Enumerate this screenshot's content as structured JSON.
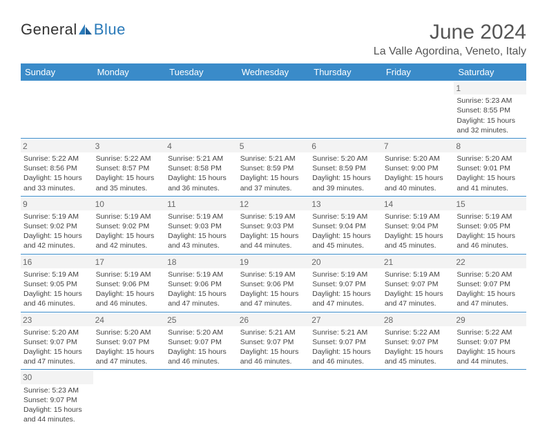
{
  "brand": {
    "name_a": "General",
    "name_b": "Blue"
  },
  "title": "June 2024",
  "location": "La Valle Agordina, Veneto, Italy",
  "colors": {
    "header_bg": "#3a8bc9",
    "header_fg": "#ffffff",
    "daynum_bg": "#f3f3f3",
    "rule": "#3a8bc9",
    "brand_blue": "#2a7ab9",
    "text": "#444444"
  },
  "typography": {
    "title_fontsize": 30,
    "location_fontsize": 16,
    "dayhdr_fontsize": 13,
    "cell_fontsize": 10.5
  },
  "day_headers": [
    "Sunday",
    "Monday",
    "Tuesday",
    "Wednesday",
    "Thursday",
    "Friday",
    "Saturday"
  ],
  "weeks": [
    [
      {
        "n": "",
        "lines": []
      },
      {
        "n": "",
        "lines": []
      },
      {
        "n": "",
        "lines": []
      },
      {
        "n": "",
        "lines": []
      },
      {
        "n": "",
        "lines": []
      },
      {
        "n": "",
        "lines": []
      },
      {
        "n": "1",
        "lines": [
          "Sunrise: 5:23 AM",
          "Sunset: 8:55 PM",
          "Daylight: 15 hours",
          "and 32 minutes."
        ]
      }
    ],
    [
      {
        "n": "2",
        "lines": [
          "Sunrise: 5:22 AM",
          "Sunset: 8:56 PM",
          "Daylight: 15 hours",
          "and 33 minutes."
        ]
      },
      {
        "n": "3",
        "lines": [
          "Sunrise: 5:22 AM",
          "Sunset: 8:57 PM",
          "Daylight: 15 hours",
          "and 35 minutes."
        ]
      },
      {
        "n": "4",
        "lines": [
          "Sunrise: 5:21 AM",
          "Sunset: 8:58 PM",
          "Daylight: 15 hours",
          "and 36 minutes."
        ]
      },
      {
        "n": "5",
        "lines": [
          "Sunrise: 5:21 AM",
          "Sunset: 8:59 PM",
          "Daylight: 15 hours",
          "and 37 minutes."
        ]
      },
      {
        "n": "6",
        "lines": [
          "Sunrise: 5:20 AM",
          "Sunset: 8:59 PM",
          "Daylight: 15 hours",
          "and 39 minutes."
        ]
      },
      {
        "n": "7",
        "lines": [
          "Sunrise: 5:20 AM",
          "Sunset: 9:00 PM",
          "Daylight: 15 hours",
          "and 40 minutes."
        ]
      },
      {
        "n": "8",
        "lines": [
          "Sunrise: 5:20 AM",
          "Sunset: 9:01 PM",
          "Daylight: 15 hours",
          "and 41 minutes."
        ]
      }
    ],
    [
      {
        "n": "9",
        "lines": [
          "Sunrise: 5:19 AM",
          "Sunset: 9:02 PM",
          "Daylight: 15 hours",
          "and 42 minutes."
        ]
      },
      {
        "n": "10",
        "lines": [
          "Sunrise: 5:19 AM",
          "Sunset: 9:02 PM",
          "Daylight: 15 hours",
          "and 42 minutes."
        ]
      },
      {
        "n": "11",
        "lines": [
          "Sunrise: 5:19 AM",
          "Sunset: 9:03 PM",
          "Daylight: 15 hours",
          "and 43 minutes."
        ]
      },
      {
        "n": "12",
        "lines": [
          "Sunrise: 5:19 AM",
          "Sunset: 9:03 PM",
          "Daylight: 15 hours",
          "and 44 minutes."
        ]
      },
      {
        "n": "13",
        "lines": [
          "Sunrise: 5:19 AM",
          "Sunset: 9:04 PM",
          "Daylight: 15 hours",
          "and 45 minutes."
        ]
      },
      {
        "n": "14",
        "lines": [
          "Sunrise: 5:19 AM",
          "Sunset: 9:04 PM",
          "Daylight: 15 hours",
          "and 45 minutes."
        ]
      },
      {
        "n": "15",
        "lines": [
          "Sunrise: 5:19 AM",
          "Sunset: 9:05 PM",
          "Daylight: 15 hours",
          "and 46 minutes."
        ]
      }
    ],
    [
      {
        "n": "16",
        "lines": [
          "Sunrise: 5:19 AM",
          "Sunset: 9:05 PM",
          "Daylight: 15 hours",
          "and 46 minutes."
        ]
      },
      {
        "n": "17",
        "lines": [
          "Sunrise: 5:19 AM",
          "Sunset: 9:06 PM",
          "Daylight: 15 hours",
          "and 46 minutes."
        ]
      },
      {
        "n": "18",
        "lines": [
          "Sunrise: 5:19 AM",
          "Sunset: 9:06 PM",
          "Daylight: 15 hours",
          "and 47 minutes."
        ]
      },
      {
        "n": "19",
        "lines": [
          "Sunrise: 5:19 AM",
          "Sunset: 9:06 PM",
          "Daylight: 15 hours",
          "and 47 minutes."
        ]
      },
      {
        "n": "20",
        "lines": [
          "Sunrise: 5:19 AM",
          "Sunset: 9:07 PM",
          "Daylight: 15 hours",
          "and 47 minutes."
        ]
      },
      {
        "n": "21",
        "lines": [
          "Sunrise: 5:19 AM",
          "Sunset: 9:07 PM",
          "Daylight: 15 hours",
          "and 47 minutes."
        ]
      },
      {
        "n": "22",
        "lines": [
          "Sunrise: 5:20 AM",
          "Sunset: 9:07 PM",
          "Daylight: 15 hours",
          "and 47 minutes."
        ]
      }
    ],
    [
      {
        "n": "23",
        "lines": [
          "Sunrise: 5:20 AM",
          "Sunset: 9:07 PM",
          "Daylight: 15 hours",
          "and 47 minutes."
        ]
      },
      {
        "n": "24",
        "lines": [
          "Sunrise: 5:20 AM",
          "Sunset: 9:07 PM",
          "Daylight: 15 hours",
          "and 47 minutes."
        ]
      },
      {
        "n": "25",
        "lines": [
          "Sunrise: 5:20 AM",
          "Sunset: 9:07 PM",
          "Daylight: 15 hours",
          "and 46 minutes."
        ]
      },
      {
        "n": "26",
        "lines": [
          "Sunrise: 5:21 AM",
          "Sunset: 9:07 PM",
          "Daylight: 15 hours",
          "and 46 minutes."
        ]
      },
      {
        "n": "27",
        "lines": [
          "Sunrise: 5:21 AM",
          "Sunset: 9:07 PM",
          "Daylight: 15 hours",
          "and 46 minutes."
        ]
      },
      {
        "n": "28",
        "lines": [
          "Sunrise: 5:22 AM",
          "Sunset: 9:07 PM",
          "Daylight: 15 hours",
          "and 45 minutes."
        ]
      },
      {
        "n": "29",
        "lines": [
          "Sunrise: 5:22 AM",
          "Sunset: 9:07 PM",
          "Daylight: 15 hours",
          "and 44 minutes."
        ]
      }
    ],
    [
      {
        "n": "30",
        "lines": [
          "Sunrise: 5:23 AM",
          "Sunset: 9:07 PM",
          "Daylight: 15 hours",
          "and 44 minutes."
        ]
      },
      {
        "n": "",
        "lines": []
      },
      {
        "n": "",
        "lines": []
      },
      {
        "n": "",
        "lines": []
      },
      {
        "n": "",
        "lines": []
      },
      {
        "n": "",
        "lines": []
      },
      {
        "n": "",
        "lines": []
      }
    ]
  ]
}
